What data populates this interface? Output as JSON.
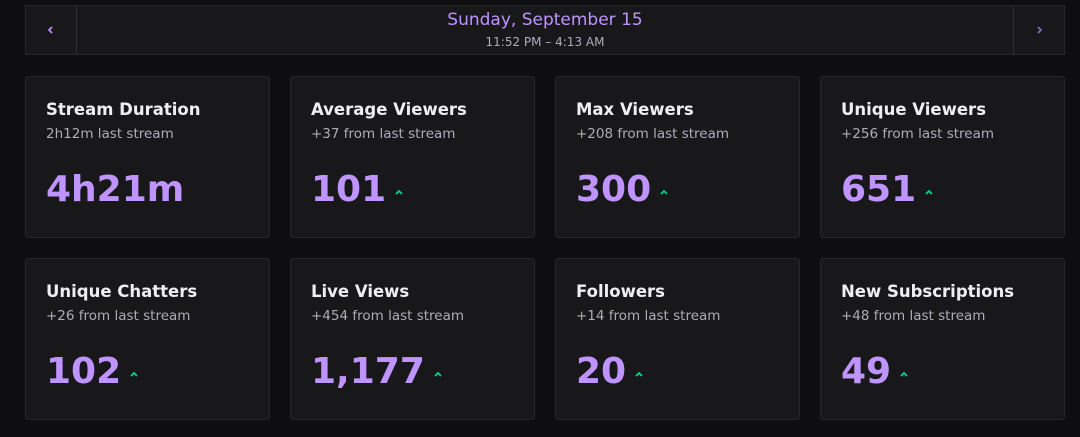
{
  "header": {
    "title": "Sunday, September 15",
    "subtitle": "11:52 PM – 4:13 AM"
  },
  "cards": [
    {
      "title": "Stream Duration",
      "subtitle": "2h12m last stream",
      "value": "4h21m",
      "trend": "none"
    },
    {
      "title": "Average Viewers",
      "subtitle": "+37 from last stream",
      "value": "101",
      "trend": "up"
    },
    {
      "title": "Max Viewers",
      "subtitle": "+208 from last stream",
      "value": "300",
      "trend": "up"
    },
    {
      "title": "Unique Viewers",
      "subtitle": "+256 from last stream",
      "value": "651",
      "trend": "up"
    },
    {
      "title": "Unique Chatters",
      "subtitle": "+26 from last stream",
      "value": "102",
      "trend": "up"
    },
    {
      "title": "Live Views",
      "subtitle": "+454 from last stream",
      "value": "1,177",
      "trend": "up"
    },
    {
      "title": "Followers",
      "subtitle": "+14 from last stream",
      "value": "20",
      "trend": "up"
    },
    {
      "title": "New Subscriptions",
      "subtitle": "+48 from last stream",
      "value": "49",
      "trend": "up"
    }
  ]
}
